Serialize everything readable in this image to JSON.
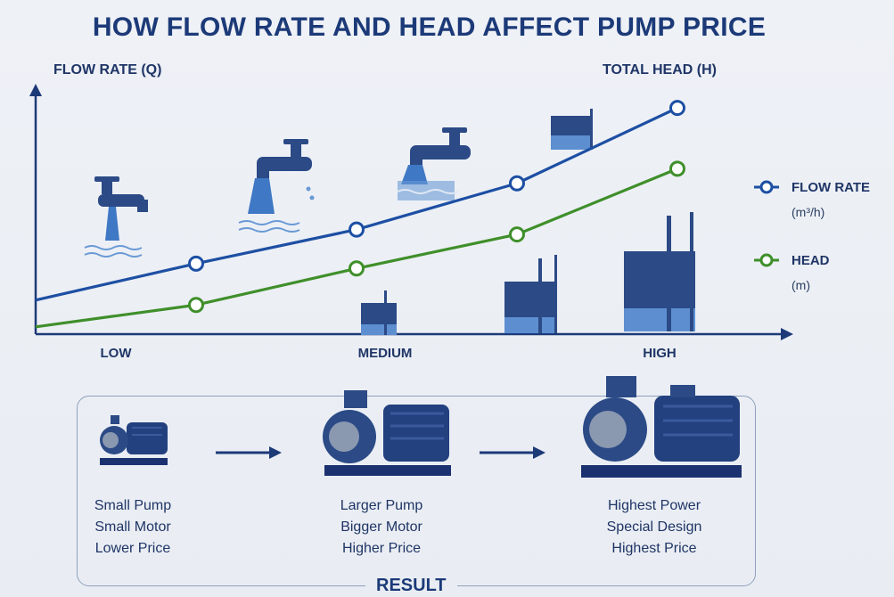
{
  "title": "HOW FLOW RATE AND HEAD AFFECT PUMP PRICE",
  "axes": {
    "y_left_label": "FLOW RATE (Q)",
    "y_right_label": "TOTAL HEAD (H)",
    "x_categories": [
      "LOW",
      "MEDIUM",
      "HIGH"
    ]
  },
  "legend": {
    "flow": {
      "name": "FLOW RATE",
      "unit": "(m³/h)",
      "color": "#1d4fa3"
    },
    "head": {
      "name": "HEAD",
      "unit": "(m)",
      "color": "#3f8f2a"
    }
  },
  "chart_data": {
    "type": "line",
    "series": [
      {
        "name": "FLOW RATE",
        "values": [
          0.14,
          0.29,
          0.43,
          0.62,
          0.93
        ],
        "color": "#1d4fa3"
      },
      {
        "name": "HEAD",
        "values": [
          0.03,
          0.12,
          0.27,
          0.41,
          0.68
        ],
        "color": "#3f8f2a"
      }
    ],
    "x": [
      0.0,
      0.25,
      0.5,
      0.75,
      1.0
    ],
    "categories": [
      "LOW",
      "MEDIUM",
      "HIGH"
    ],
    "ylim": [
      0,
      1
    ],
    "grid": false
  },
  "result": {
    "label": "RESULT",
    "pumps": [
      {
        "size": "small",
        "lines": [
          "Small Pump",
          "Small Motor",
          "Lower Price"
        ]
      },
      {
        "size": "medium",
        "lines": [
          "Larger Pump",
          "Bigger Motor",
          "Higher Price"
        ]
      },
      {
        "size": "large",
        "lines": [
          "Highest Power",
          "Special Design",
          "Highest Price"
        ]
      }
    ]
  },
  "colors": {
    "navy": "#1c3a78",
    "pump_blue": "#23407f",
    "water": "#3f78c4"
  }
}
